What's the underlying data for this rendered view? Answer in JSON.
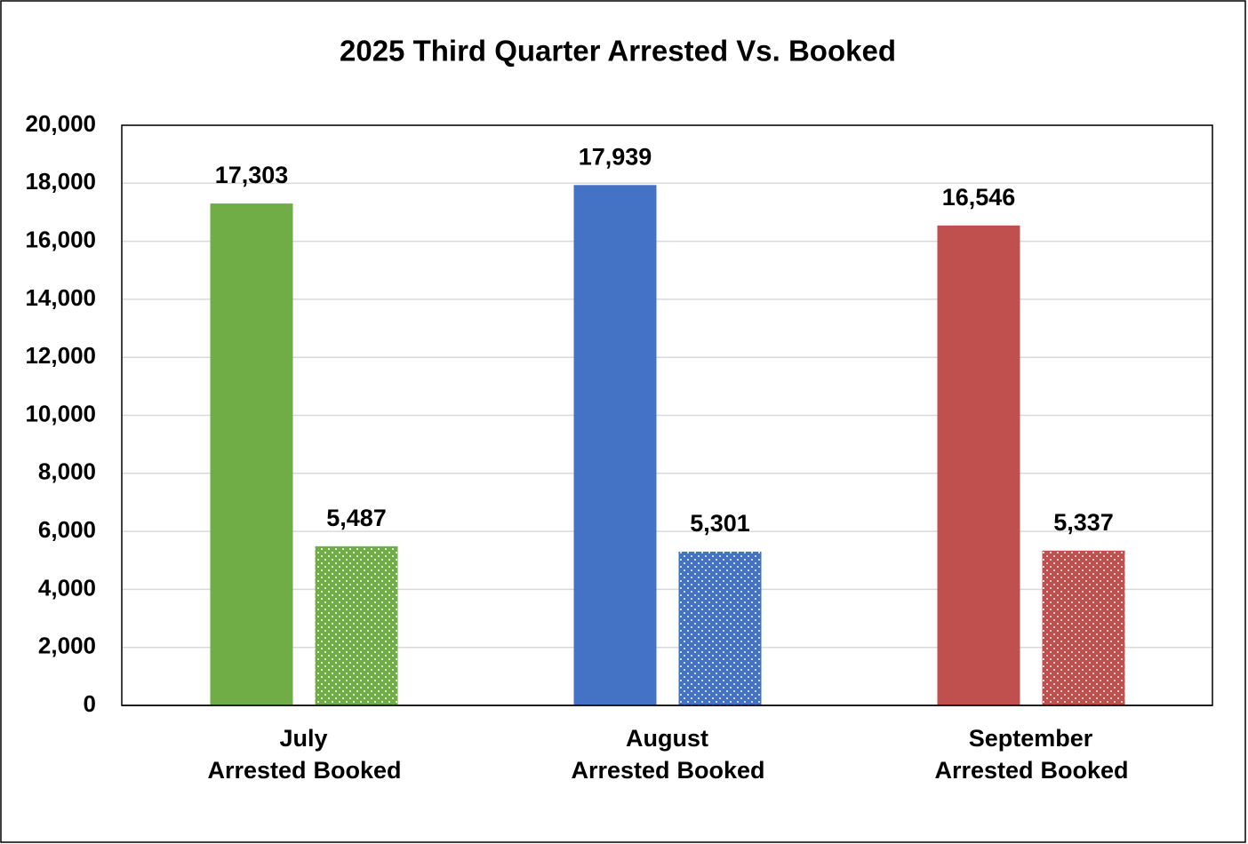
{
  "chart_data": {
    "type": "bar",
    "title": "2025 Third Quarter Arrested Vs. Booked",
    "categories": [
      "July",
      "August",
      "September"
    ],
    "colors": [
      "#70ad47",
      "#4472c4",
      "#c0504d"
    ],
    "series": [
      {
        "name": "Arrested",
        "values": [
          17303,
          17939,
          16546
        ],
        "value_labels": [
          "17,303",
          "17,939",
          "16,546"
        ]
      },
      {
        "name": "Booked",
        "pattern": "dotted",
        "values": [
          5487,
          5301,
          5337
        ],
        "value_labels": [
          "5,487",
          "5,301",
          "5,337"
        ]
      }
    ],
    "ylim": [
      0,
      20000
    ],
    "yticks": [
      0,
      {
        "value": 2000,
        "label": "2,000"
      },
      {
        "value": 4000,
        "label": "4,000"
      },
      {
        "value": 6000,
        "label": "6,000"
      },
      {
        "value": 8000,
        "label": "8,000"
      },
      {
        "value": 10000,
        "label": "10,000"
      },
      {
        "value": 12000,
        "label": "12,000"
      },
      {
        "value": 14000,
        "label": "14,000"
      },
      {
        "value": 16000,
        "label": "16,000"
      },
      {
        "value": 18000,
        "label": "18,000"
      },
      {
        "value": 20000,
        "label": "20,000"
      }
    ],
    "grid": true
  }
}
